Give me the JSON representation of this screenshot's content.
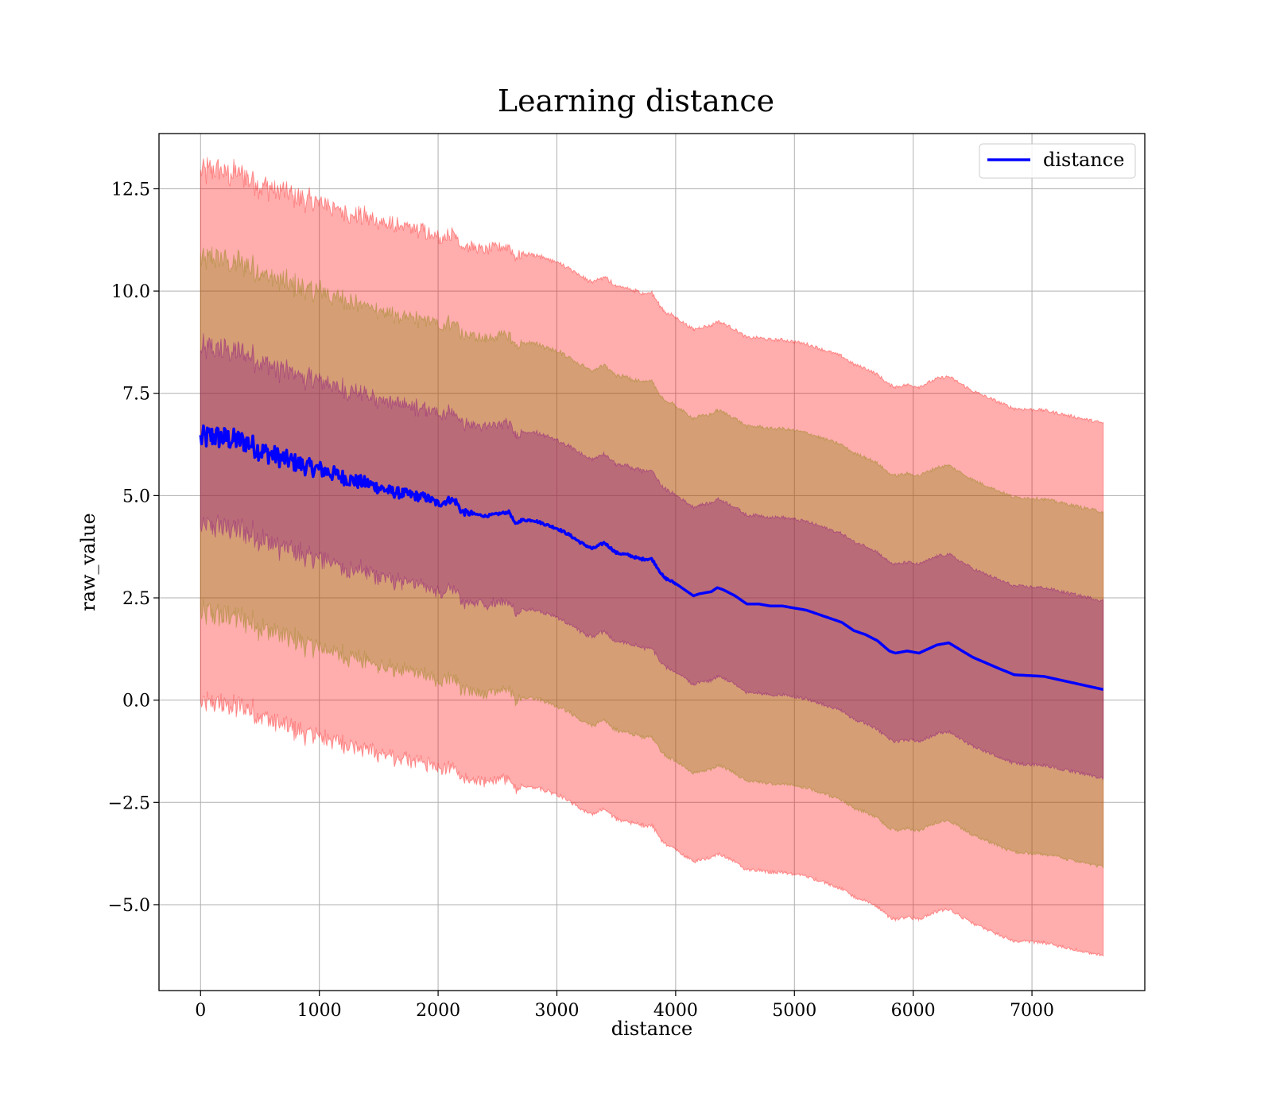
{
  "chart_data": {
    "type": "line",
    "title": "Learning distance",
    "xlabel": "distance",
    "ylabel": "raw_value",
    "xlim": [
      -350,
      7950
    ],
    "ylim": [
      -7.1,
      13.85
    ],
    "xticks": [
      {
        "value": 0,
        "label": "0"
      },
      {
        "value": 1000,
        "label": "1000"
      },
      {
        "value": 2000,
        "label": "2000"
      },
      {
        "value": 3000,
        "label": "3000"
      },
      {
        "value": 4000,
        "label": "4000"
      },
      {
        "value": 5000,
        "label": "5000"
      },
      {
        "value": 6000,
        "label": "6000"
      },
      {
        "value": 7000,
        "label": "7000"
      }
    ],
    "yticks": [
      {
        "value": -5.0,
        "label": "−5.0"
      },
      {
        "value": -2.5,
        "label": "−2.5"
      },
      {
        "value": 0.0,
        "label": "0.0"
      },
      {
        "value": 2.5,
        "label": "2.5"
      },
      {
        "value": 5.0,
        "label": "5.0"
      },
      {
        "value": 7.5,
        "label": "7.5"
      },
      {
        "value": 10.0,
        "label": "10.0"
      },
      {
        "value": 12.5,
        "label": "12.5"
      }
    ],
    "grid": true,
    "legend_position": "top-right",
    "series": [
      {
        "name": "distance",
        "color": "#0000ff",
        "x": [
          0,
          100,
          200,
          300,
          400,
          500,
          600,
          700,
          800,
          900,
          1000,
          1100,
          1200,
          1300,
          1400,
          1500,
          1600,
          1700,
          1800,
          1900,
          2000,
          2100,
          2150,
          2200,
          2300,
          2400,
          2500,
          2600,
          2650,
          2700,
          2800,
          2900,
          3000,
          3100,
          3200,
          3300,
          3400,
          3500,
          3600,
          3700,
          3800,
          3900,
          4000,
          4100,
          4150,
          4200,
          4300,
          4350,
          4400,
          4500,
          4600,
          4700,
          4800,
          4900,
          5000,
          5100,
          5200,
          5300,
          5400,
          5500,
          5600,
          5700,
          5800,
          5850,
          5950,
          6050,
          6200,
          6300,
          6500,
          6700,
          6850,
          7100,
          7600
        ],
        "values": [
          6.38,
          6.45,
          6.4,
          6.35,
          6.3,
          6.1,
          6.0,
          5.9,
          5.8,
          5.7,
          5.65,
          5.55,
          5.45,
          5.35,
          5.3,
          5.2,
          5.1,
          5.05,
          5.0,
          4.95,
          4.8,
          4.9,
          4.85,
          4.6,
          4.55,
          4.5,
          4.55,
          4.6,
          4.3,
          4.4,
          4.4,
          4.3,
          4.2,
          4.05,
          3.85,
          3.7,
          3.85,
          3.6,
          3.55,
          3.45,
          3.45,
          3.0,
          2.85,
          2.65,
          2.55,
          2.6,
          2.65,
          2.75,
          2.7,
          2.55,
          2.35,
          2.35,
          2.3,
          2.3,
          2.25,
          2.2,
          2.1,
          2.0,
          1.9,
          1.7,
          1.6,
          1.45,
          1.2,
          1.15,
          1.2,
          1.15,
          1.35,
          1.4,
          1.05,
          0.8,
          0.62,
          0.58,
          0.26
        ]
      }
    ],
    "bands": [
      {
        "sigma": 3,
        "color": "#ff0000",
        "opacity": 0.32
      },
      {
        "sigma": 2,
        "color": "#808000",
        "opacity": 0.32
      },
      {
        "sigma": 1,
        "color": "#800080",
        "opacity": 0.32
      }
    ],
    "band_sigma_unit": 2.17
  }
}
